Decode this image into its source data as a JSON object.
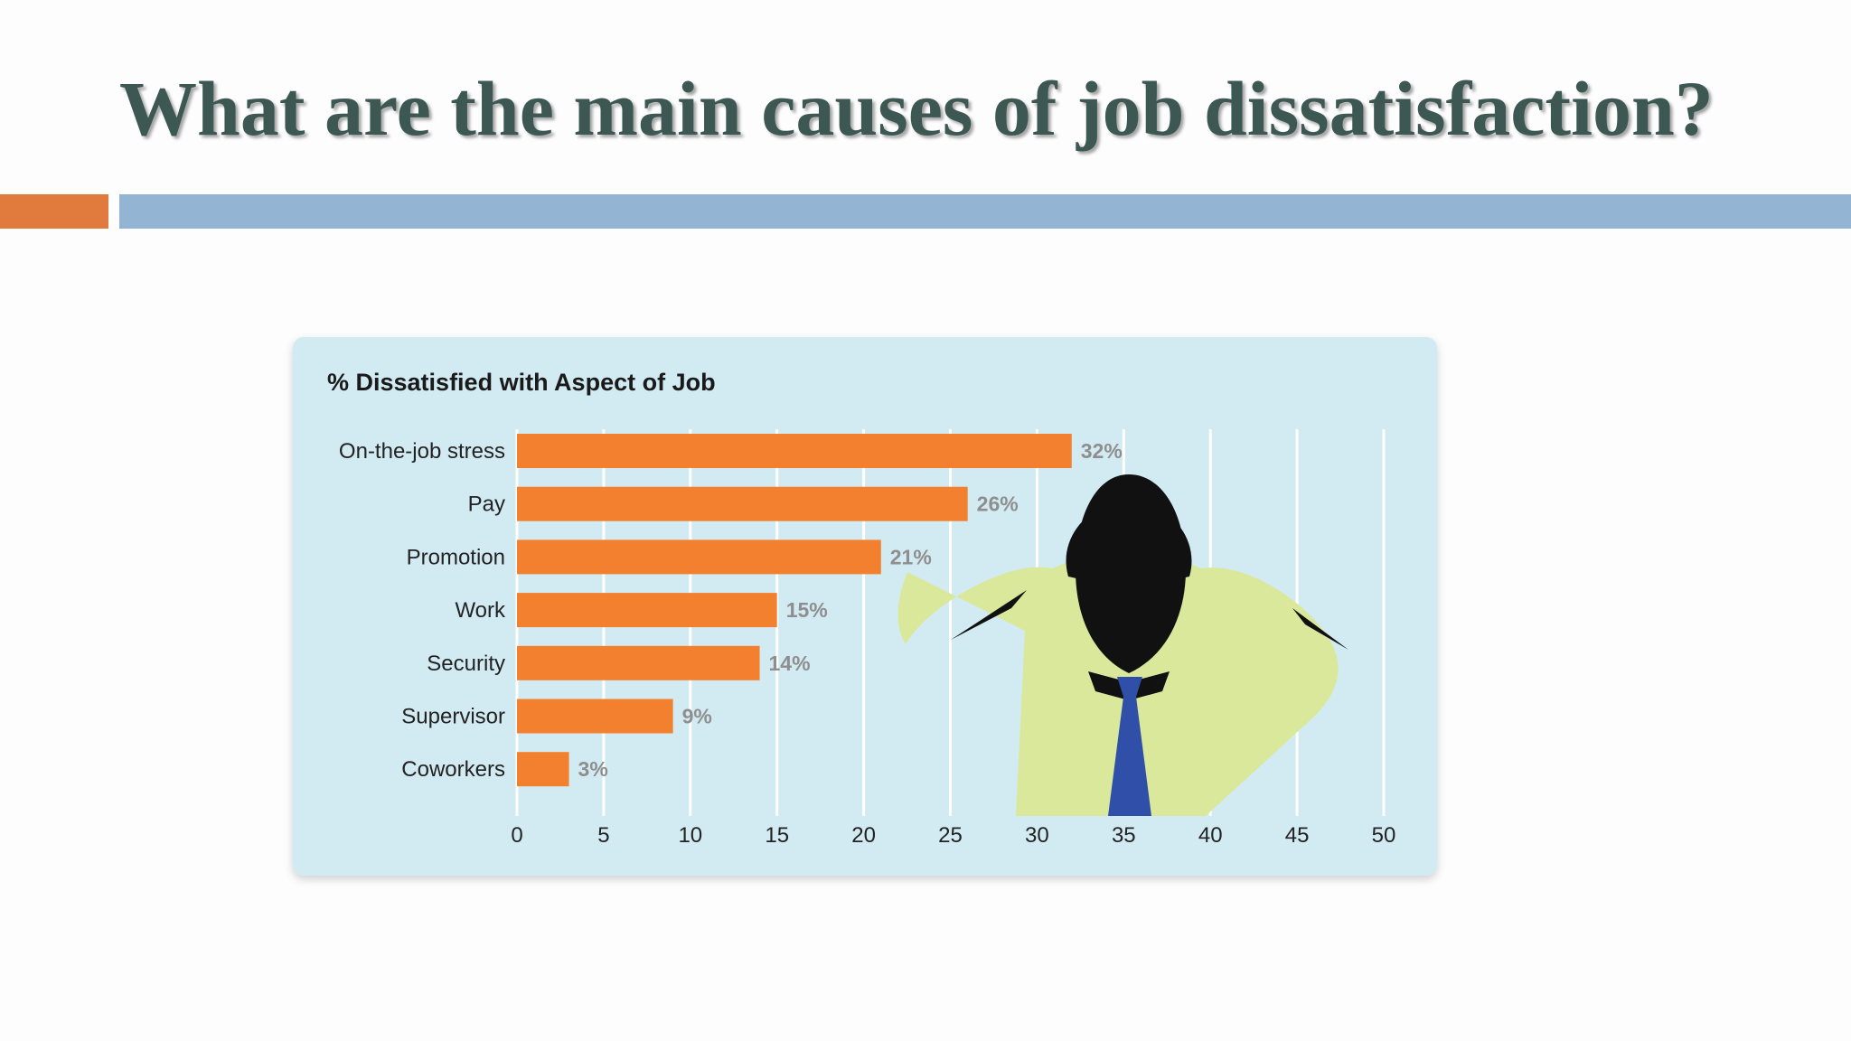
{
  "slide": {
    "title": "What are the main causes of job dissatisfaction?"
  },
  "colors": {
    "title_text": "#3d5852",
    "accent_orange": "#e07a3d",
    "accent_blue": "#93b5d3",
    "panel_background": "#d2ebf2",
    "bar": "#f2802f",
    "figure_shirt": "#d9e89a",
    "figure_tie": "#2f4fa8",
    "figure_silhouette": "#111111"
  },
  "illustration": {
    "icon": "stressed-person-icon"
  },
  "chart_data": {
    "type": "bar",
    "orientation": "horizontal",
    "title": "% Dissatisfied with Aspect of Job",
    "categories": [
      "On-the-job stress",
      "Pay",
      "Promotion",
      "Work",
      "Security",
      "Supervisor",
      "Coworkers"
    ],
    "values": [
      32,
      26,
      21,
      15,
      14,
      9,
      3
    ],
    "value_labels": [
      "32%",
      "26%",
      "21%",
      "15%",
      "14%",
      "9%",
      "3%"
    ],
    "xlim": [
      0,
      50
    ],
    "x_ticks": [
      0,
      5,
      10,
      15,
      20,
      25,
      30,
      35,
      40,
      45,
      50
    ],
    "grid": true,
    "legend": false
  }
}
